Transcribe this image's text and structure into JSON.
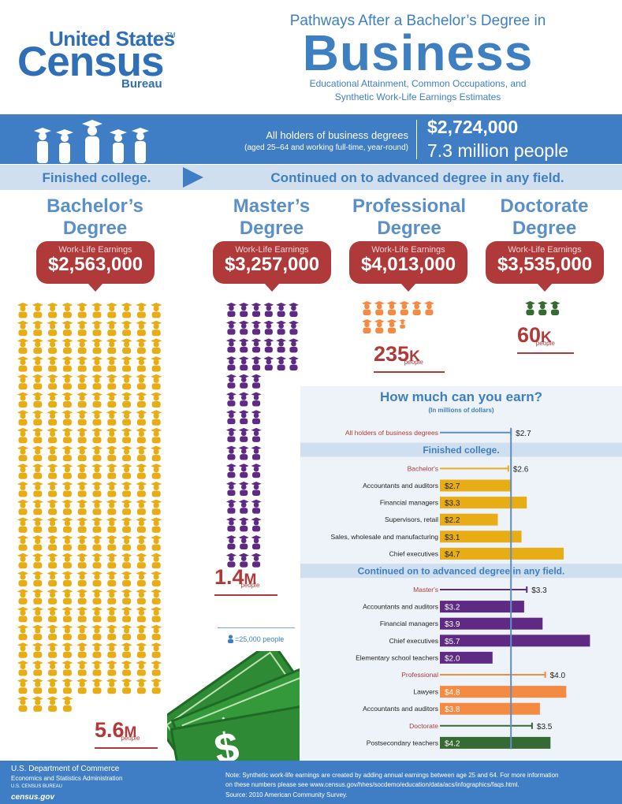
{
  "header": {
    "logo_line1": "United States",
    "logo_tm": "TM",
    "logo_line2": "Census",
    "logo_line3": "Bureau",
    "title_pre": "Pathways After a Bachelor’s Degree in",
    "title_main": "Business",
    "subtitle_line1": "Educational Attainment, Common Occupations, and",
    "subtitle_line2": "Synthetic Work-Life Earnings Estimates"
  },
  "banner": {
    "desc_line1": "All holders of business degrees",
    "desc_line2": "(aged 25–64 and working full-time, year-round)",
    "earnings": "$2,724,000",
    "people": "7.3 million people"
  },
  "paths": {
    "finished": "Finished college.",
    "continued": "Continued on to advanced degree in any field."
  },
  "degrees": [
    {
      "name_line1": "Bachelor’s",
      "name_line2": "Degree",
      "earn_label": "Work-Life Earnings",
      "earnings": "$2,563,000",
      "count_num": "5.6",
      "count_unit": "M",
      "count_suffix": "people",
      "icons": 224,
      "color": "#e8ad14"
    },
    {
      "name_line1": "Master’s",
      "name_line2": "Degree",
      "earn_label": "Work-Life Earnings",
      "earnings": "$3,257,000",
      "count_num": "1.4",
      "count_unit": "M",
      "count_suffix": "people",
      "icons": 56,
      "color": "#5e2a84"
    },
    {
      "name_line1": "Professional",
      "name_line2": "Degree",
      "earn_label": "Work-Life Earnings",
      "earnings": "$4,013,000",
      "count_num": "235",
      "count_unit": "K",
      "count_suffix": "people",
      "icons": 9.4,
      "color": "#f58a42"
    },
    {
      "name_line1": "Doctorate",
      "name_line2": "Degree",
      "earn_label": "Work-Life Earnings",
      "earnings": "$3,535,000",
      "count_num": "60",
      "count_unit": "K",
      "count_suffix": "people",
      "icons": 2.4,
      "color": "#356a32"
    }
  ],
  "legend": {
    "text": "=25,000 people"
  },
  "chart_data": {
    "type": "bar",
    "title": "How much can you earn?",
    "subtitle": "(In millions of dollars)",
    "reference_value": 2.7,
    "xlim": [
      0,
      6
    ],
    "sections": [
      {
        "heading": "",
        "rows": [
          {
            "label": "All holders of business degrees",
            "value": 2.7,
            "text": "$2.7",
            "kind": "line",
            "color": "#5b8fc9"
          }
        ]
      },
      {
        "heading": "Finished college.",
        "rows": [
          {
            "label": "Bachelor's",
            "value": 2.6,
            "text": "$2.6",
            "kind": "line",
            "color": "#e8ad14"
          },
          {
            "label": "Accountants and auditors",
            "value": 2.7,
            "text": "$2.7",
            "kind": "bar",
            "color": "#e8ad14"
          },
          {
            "label": "Financial managers",
            "value": 3.3,
            "text": "$3.3",
            "kind": "bar",
            "color": "#e8ad14"
          },
          {
            "label": "Supervisors, retail",
            "value": 2.2,
            "text": "$2.2",
            "kind": "bar",
            "color": "#e8ad14"
          },
          {
            "label": "Sales, wholesale and manufacturing",
            "value": 3.1,
            "text": "$3.1",
            "kind": "bar",
            "color": "#e8ad14"
          },
          {
            "label": "Chief executives",
            "value": 4.7,
            "text": "$4.7",
            "kind": "bar",
            "color": "#e8ad14"
          }
        ]
      },
      {
        "heading": "Continued on to advanced degree in any field.",
        "rows": [
          {
            "label": "Master's",
            "value": 3.3,
            "text": "$3.3",
            "kind": "line",
            "color": "#5e2a84"
          },
          {
            "label": "Accountants and auditors",
            "value": 3.2,
            "text": "$3.2",
            "kind": "bar",
            "color": "#5e2a84"
          },
          {
            "label": "Financial managers",
            "value": 3.9,
            "text": "$3.9",
            "kind": "bar",
            "color": "#5e2a84"
          },
          {
            "label": "Chief executives",
            "value": 5.7,
            "text": "$5.7",
            "kind": "bar",
            "color": "#5e2a84"
          },
          {
            "label": "Elementary school teachers",
            "value": 2.0,
            "text": "$2.0",
            "kind": "bar",
            "color": "#5e2a84"
          },
          {
            "label": "Professional",
            "value": 4.0,
            "text": "$4.0",
            "kind": "line",
            "color": "#f58a42"
          },
          {
            "label": "Lawyers",
            "value": 4.8,
            "text": "$4.8",
            "kind": "bar",
            "color": "#f58a42"
          },
          {
            "label": "Accountants and auditors",
            "value": 3.8,
            "text": "$3.8",
            "kind": "bar",
            "color": "#f58a42"
          },
          {
            "label": "Doctorate",
            "value": 3.5,
            "text": "$3.5",
            "kind": "line",
            "color": "#356a32"
          },
          {
            "label": "Postsecondary teachers",
            "value": 4.2,
            "text": "$4.2",
            "kind": "bar",
            "color": "#356a32"
          }
        ]
      }
    ]
  },
  "footer": {
    "dept": "U.S. Department of Commerce",
    "admin": "Economics and Statistics Administration",
    "bureau": "U.S. CENSUS BUREAU",
    "site": "census.gov",
    "note_line1": "Note: Synthetic work-life earnings are created by adding annual earnings between age 25 and 64. For more information",
    "note_line2": "on these numbers please see www.census.gov/hhes/socdemo/education/data/acs/infographics/faqs.html.",
    "source": "Source: 2010 American Community Survey."
  }
}
